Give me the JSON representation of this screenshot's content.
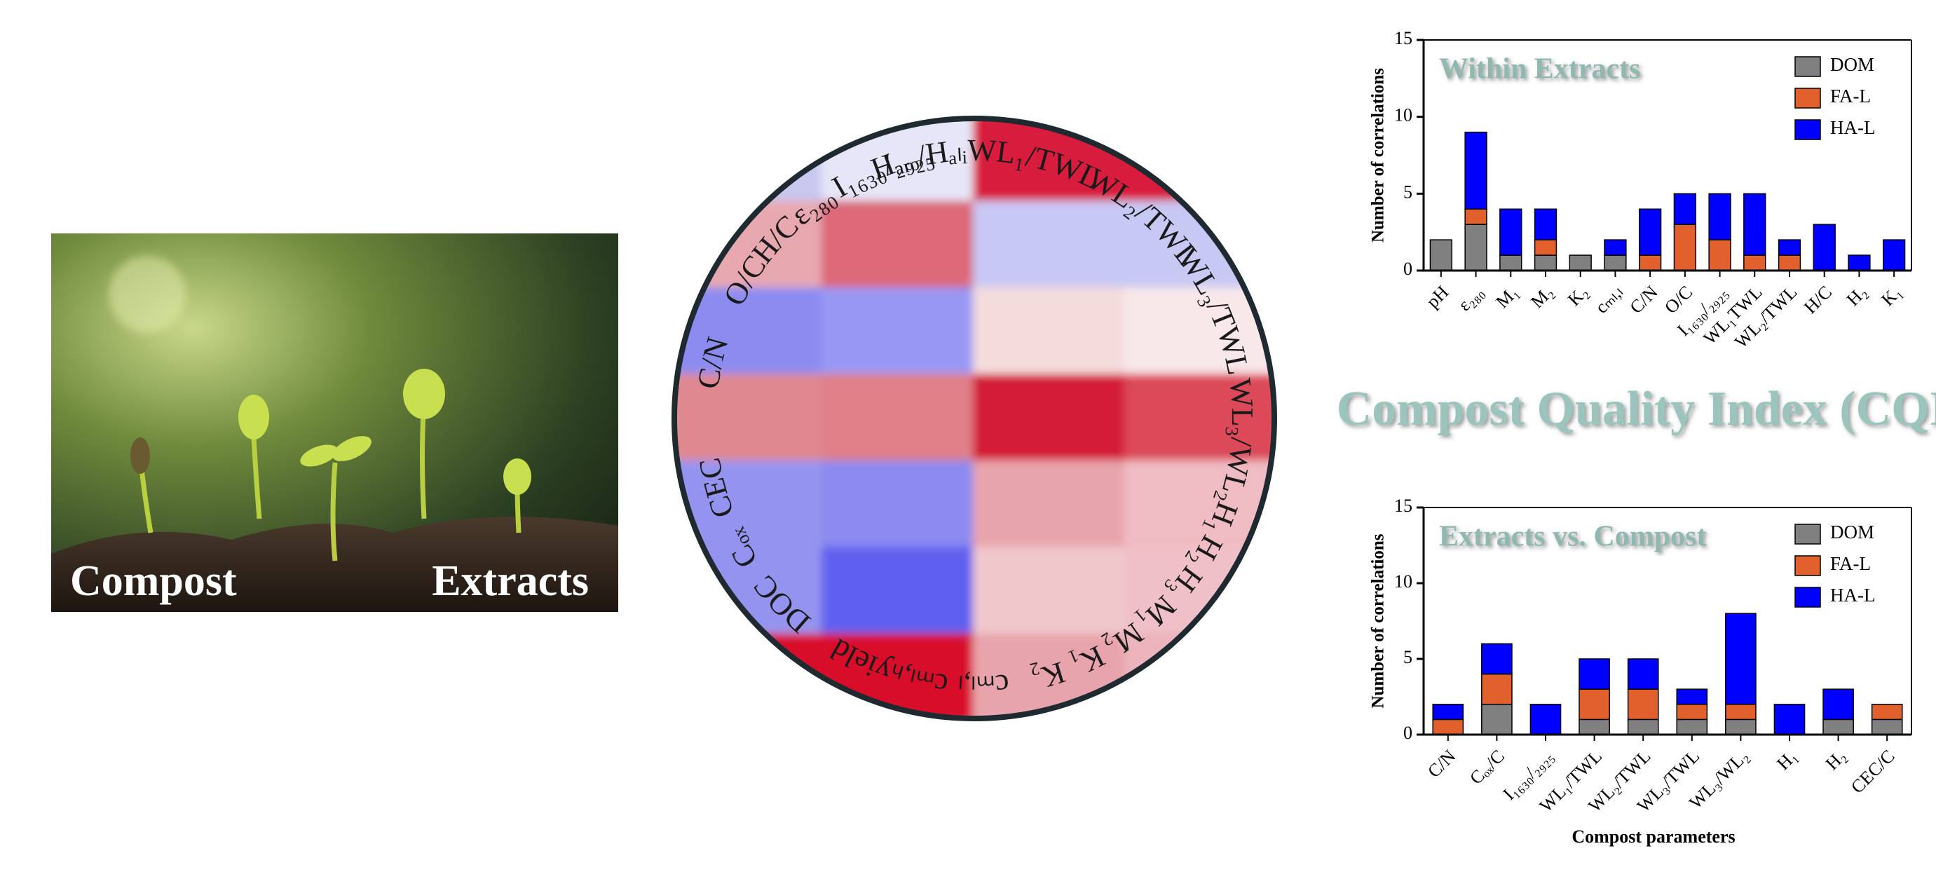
{
  "title": "Compost Quality Index (CQI)",
  "photo": {
    "left_label": "Compost",
    "right_label": "Extracts"
  },
  "heatmap": {
    "labels": [
      "Hₐᵣₒ/Hₐₗᵢ",
      "WL₁/TWL",
      "WL₂/TWL",
      "WL₃/TWL",
      "WL₃/WL₂",
      "H₁",
      "H₂",
      "H₃",
      "M₁",
      "M₂",
      "K₁",
      "K₂",
      "cₘₗ,ₗ",
      "cₘₗ,ₕ",
      "yield",
      "DOC",
      "Cₒₓ",
      "CEC",
      "C/N",
      "O/C",
      "H/C",
      "ε₂₈₀",
      "I₁₆₃₀/₂₉₂₅"
    ],
    "cells": [
      [
        "#c8c8f0",
        "#e6e6f8",
        "#d81e3c",
        "#d81e3c"
      ],
      [
        "#e8a8b0",
        "#dc6878",
        "#c8c8f4",
        "#c8c8f4"
      ],
      [
        "#8c8cf0",
        "#9898f4",
        "#f4dcdc",
        "#f8e8ea"
      ],
      [
        "#e08890",
        "#e08088",
        "#d41e38",
        "#dc4858"
      ],
      [
        "#9494f0",
        "#8a8af0",
        "#e8a4ac",
        "#f0bcc4"
      ],
      [
        "#9494f0",
        "#6060f0",
        "#f0c8cc",
        "#f0c0c8"
      ],
      [
        "#d8102c",
        "#d8102c",
        "#e8a4ac",
        "#ecb4bc"
      ]
    ]
  },
  "chart_data": [
    {
      "type": "stacked-bar",
      "title": "Within Extracts",
      "ylabel": "Number of correlations",
      "categories": [
        "pH",
        "ε₂₈₀",
        "M₁",
        "M₂",
        "K₂",
        "cₘₗ,ₗ",
        "C/N",
        "O/C",
        "I₁₆₃₀/₂₉₂₅",
        "WL₁TWL",
        "WL₂/TWL",
        "H/C",
        "H₂",
        "K₁"
      ],
      "series": [
        {
          "name": "DOM",
          "color": "#808080",
          "values": [
            2,
            3,
            1,
            1,
            1,
            1,
            0,
            0,
            0,
            0,
            0,
            0,
            0,
            0
          ]
        },
        {
          "name": "FA-L",
          "color": "#e2602c",
          "values": [
            0,
            1,
            0,
            1,
            0,
            0,
            1,
            3,
            2,
            1,
            1,
            0,
            0,
            0
          ]
        },
        {
          "name": "HA-L",
          "color": "#0000ff",
          "values": [
            0,
            5,
            3,
            2,
            0,
            1,
            3,
            2,
            3,
            4,
            1,
            3,
            1,
            2
          ]
        }
      ],
      "ylim": [
        0,
        15
      ],
      "yticks": [
        0,
        5,
        10,
        15
      ],
      "legend": "top-right"
    },
    {
      "type": "stacked-bar",
      "title": "Extracts vs. Compost",
      "ylabel": "Number of correlations",
      "xlabel": "Compost parameters",
      "categories": [
        "C/N",
        "Cₒₓ/C",
        "I₁₆₃₀/₂₉₂₅",
        "WL₁/TWL",
        "WL₂/TWL",
        "WL₃/TWL",
        "WL₃/WL₂",
        "H₁",
        "H₂",
        "CEC/C"
      ],
      "series": [
        {
          "name": "DOM",
          "color": "#808080",
          "values": [
            0,
            2,
            0,
            1,
            1,
            1,
            1,
            0,
            1,
            1
          ]
        },
        {
          "name": "FA-L",
          "color": "#e2602c",
          "values": [
            1,
            2,
            0,
            2,
            2,
            1,
            1,
            0,
            0,
            1
          ]
        },
        {
          "name": "HA-L",
          "color": "#0000ff",
          "values": [
            1,
            2,
            2,
            2,
            2,
            1,
            6,
            2,
            2,
            0
          ]
        }
      ],
      "ylim": [
        0,
        15
      ],
      "yticks": [
        0,
        5,
        10,
        15
      ],
      "legend": "top-right"
    }
  ]
}
